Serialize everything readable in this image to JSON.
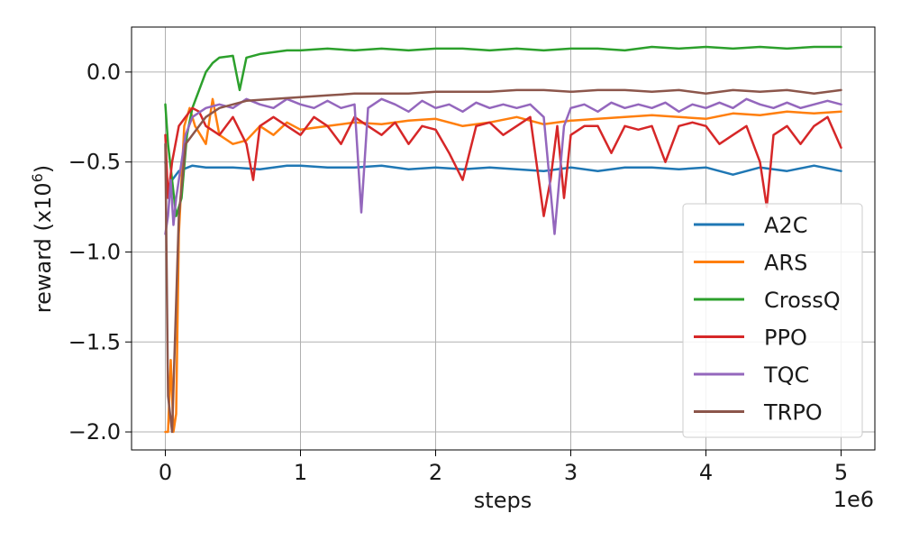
{
  "chart_data": {
    "type": "line",
    "xlabel": "steps",
    "ylabel_main": "reward (x10",
    "ylabel_sup": "6",
    "ylabel_close": ")",
    "x_offset_label": "1e6",
    "xlim": [
      -0.25,
      5.25
    ],
    "ylim": [
      -2.1,
      0.25
    ],
    "x_ticks": [
      0,
      1,
      2,
      3,
      4,
      5
    ],
    "x_tick_labels": [
      "0",
      "1",
      "2",
      "3",
      "4",
      "5"
    ],
    "y_ticks": [
      -2.0,
      -1.5,
      -1.0,
      -0.5,
      0.0
    ],
    "y_tick_labels": [
      "−2.0",
      "−1.5",
      "−1.0",
      "−0.5",
      "0.0"
    ],
    "grid": true,
    "legend_position": "lower-right",
    "series": [
      {
        "name": "A2C",
        "color": "#1f77b4",
        "x": [
          0,
          0.02,
          0.05,
          0.1,
          0.2,
          0.3,
          0.5,
          0.7,
          0.9,
          1.0,
          1.2,
          1.4,
          1.6,
          1.8,
          2.0,
          2.2,
          2.4,
          2.6,
          2.8,
          2.9,
          3.0,
          3.2,
          3.4,
          3.6,
          3.8,
          4.0,
          4.2,
          4.4,
          4.6,
          4.8,
          5.0
        ],
        "y": [
          -0.5,
          -0.65,
          -0.6,
          -0.55,
          -0.52,
          -0.53,
          -0.53,
          -0.54,
          -0.52,
          -0.52,
          -0.53,
          -0.53,
          -0.52,
          -0.54,
          -0.53,
          -0.54,
          -0.53,
          -0.54,
          -0.55,
          -0.54,
          -0.53,
          -0.55,
          -0.53,
          -0.53,
          -0.54,
          -0.53,
          -0.57,
          -0.53,
          -0.55,
          -0.52,
          -0.55
        ]
      },
      {
        "name": "ARS",
        "color": "#ff7f0e",
        "x": [
          0,
          0.02,
          0.04,
          0.06,
          0.08,
          0.1,
          0.14,
          0.18,
          0.22,
          0.26,
          0.3,
          0.35,
          0.4,
          0.5,
          0.6,
          0.7,
          0.8,
          0.9,
          1.0,
          1.2,
          1.4,
          1.6,
          1.8,
          2.0,
          2.2,
          2.4,
          2.6,
          2.8,
          3.0,
          3.2,
          3.4,
          3.6,
          3.8,
          4.0,
          4.2,
          4.4,
          4.6,
          4.8,
          5.0
        ],
        "y": [
          -2.0,
          -2.0,
          -1.6,
          -2.0,
          -1.9,
          -0.9,
          -0.3,
          -0.2,
          -0.3,
          -0.35,
          -0.4,
          -0.15,
          -0.35,
          -0.4,
          -0.38,
          -0.3,
          -0.35,
          -0.28,
          -0.32,
          -0.3,
          -0.28,
          -0.29,
          -0.27,
          -0.26,
          -0.3,
          -0.28,
          -0.25,
          -0.29,
          -0.27,
          -0.26,
          -0.25,
          -0.24,
          -0.25,
          -0.26,
          -0.23,
          -0.24,
          -0.22,
          -0.23,
          -0.22
        ]
      },
      {
        "name": "CrossQ",
        "color": "#2ca02c",
        "x": [
          0,
          0.02,
          0.05,
          0.08,
          0.12,
          0.16,
          0.2,
          0.25,
          0.3,
          0.35,
          0.4,
          0.5,
          0.55,
          0.6,
          0.7,
          0.8,
          0.9,
          1.0,
          1.2,
          1.4,
          1.6,
          1.8,
          2.0,
          2.2,
          2.4,
          2.6,
          2.8,
          3.0,
          3.2,
          3.4,
          3.6,
          3.8,
          4.0,
          4.2,
          4.4,
          4.6,
          4.8,
          5.0
        ],
        "y": [
          -0.18,
          -0.4,
          -0.6,
          -0.8,
          -0.7,
          -0.35,
          -0.2,
          -0.1,
          0.0,
          0.05,
          0.08,
          0.09,
          -0.1,
          0.08,
          0.1,
          0.11,
          0.12,
          0.12,
          0.13,
          0.12,
          0.13,
          0.12,
          0.13,
          0.13,
          0.12,
          0.13,
          0.12,
          0.13,
          0.13,
          0.12,
          0.14,
          0.13,
          0.14,
          0.13,
          0.14,
          0.13,
          0.14,
          0.14
        ]
      },
      {
        "name": "PPO",
        "color": "#d62728",
        "x": [
          0,
          0.02,
          0.05,
          0.1,
          0.15,
          0.2,
          0.25,
          0.3,
          0.4,
          0.5,
          0.6,
          0.65,
          0.7,
          0.8,
          0.9,
          1.0,
          1.1,
          1.2,
          1.3,
          1.4,
          1.5,
          1.6,
          1.7,
          1.8,
          1.9,
          2.0,
          2.1,
          2.2,
          2.3,
          2.4,
          2.5,
          2.6,
          2.7,
          2.8,
          2.85,
          2.9,
          2.95,
          3.0,
          3.1,
          3.2,
          3.3,
          3.4,
          3.5,
          3.6,
          3.7,
          3.8,
          3.9,
          4.0,
          4.1,
          4.2,
          4.3,
          4.4,
          4.45,
          4.5,
          4.6,
          4.7,
          4.8,
          4.9,
          5.0
        ],
        "y": [
          -0.35,
          -0.7,
          -0.5,
          -0.3,
          -0.25,
          -0.2,
          -0.22,
          -0.3,
          -0.35,
          -0.25,
          -0.4,
          -0.6,
          -0.3,
          -0.25,
          -0.3,
          -0.35,
          -0.25,
          -0.3,
          -0.4,
          -0.25,
          -0.3,
          -0.35,
          -0.28,
          -0.4,
          -0.3,
          -0.32,
          -0.45,
          -0.6,
          -0.3,
          -0.28,
          -0.35,
          -0.3,
          -0.25,
          -0.8,
          -0.6,
          -0.3,
          -0.7,
          -0.35,
          -0.3,
          -0.3,
          -0.45,
          -0.3,
          -0.32,
          -0.3,
          -0.5,
          -0.3,
          -0.28,
          -0.3,
          -0.4,
          -0.35,
          -0.3,
          -0.5,
          -0.75,
          -0.35,
          -0.3,
          -0.4,
          -0.3,
          -0.25,
          -0.42
        ]
      },
      {
        "name": "TQC",
        "color": "#9467bd",
        "x": [
          0,
          0.02,
          0.04,
          0.06,
          0.08,
          0.1,
          0.15,
          0.2,
          0.3,
          0.4,
          0.5,
          0.6,
          0.7,
          0.8,
          0.9,
          1.0,
          1.1,
          1.2,
          1.3,
          1.4,
          1.45,
          1.5,
          1.6,
          1.7,
          1.8,
          1.9,
          2.0,
          2.1,
          2.2,
          2.3,
          2.4,
          2.5,
          2.6,
          2.7,
          2.8,
          2.88,
          2.95,
          3.0,
          3.1,
          3.2,
          3.3,
          3.4,
          3.5,
          3.6,
          3.7,
          3.8,
          3.9,
          4.0,
          4.1,
          4.2,
          4.3,
          4.4,
          4.5,
          4.6,
          4.7,
          4.8,
          4.9,
          5.0
        ],
        "y": [
          -0.9,
          -0.8,
          -0.6,
          -0.85,
          -0.7,
          -0.6,
          -0.35,
          -0.25,
          -0.2,
          -0.18,
          -0.2,
          -0.15,
          -0.18,
          -0.2,
          -0.15,
          -0.18,
          -0.2,
          -0.16,
          -0.2,
          -0.18,
          -0.78,
          -0.2,
          -0.15,
          -0.18,
          -0.22,
          -0.16,
          -0.2,
          -0.18,
          -0.22,
          -0.17,
          -0.2,
          -0.18,
          -0.2,
          -0.18,
          -0.25,
          -0.9,
          -0.3,
          -0.2,
          -0.18,
          -0.22,
          -0.17,
          -0.2,
          -0.18,
          -0.2,
          -0.17,
          -0.22,
          -0.18,
          -0.2,
          -0.17,
          -0.2,
          -0.15,
          -0.18,
          -0.2,
          -0.17,
          -0.2,
          -0.18,
          -0.16,
          -0.18
        ]
      },
      {
        "name": "TRPO",
        "color": "#8c564b",
        "x": [
          0,
          0.02,
          0.05,
          0.1,
          0.15,
          0.2,
          0.3,
          0.4,
          0.5,
          0.6,
          0.8,
          1.0,
          1.2,
          1.4,
          1.6,
          1.8,
          2.0,
          2.2,
          2.4,
          2.6,
          2.8,
          3.0,
          3.2,
          3.4,
          3.6,
          3.8,
          4.0,
          4.2,
          4.4,
          4.6,
          4.8,
          5.0
        ],
        "y": [
          -0.4,
          -1.8,
          -2.0,
          -0.8,
          -0.4,
          -0.35,
          -0.25,
          -0.2,
          -0.18,
          -0.16,
          -0.15,
          -0.14,
          -0.13,
          -0.12,
          -0.12,
          -0.12,
          -0.11,
          -0.11,
          -0.11,
          -0.1,
          -0.1,
          -0.11,
          -0.1,
          -0.1,
          -0.11,
          -0.1,
          -0.12,
          -0.1,
          -0.11,
          -0.1,
          -0.12,
          -0.1
        ]
      }
    ]
  }
}
